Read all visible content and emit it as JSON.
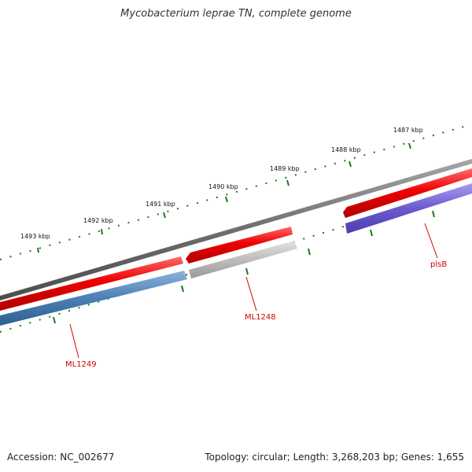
{
  "title": "Mycobacterium leprae TN, complete genome",
  "footer": {
    "accession": "Accession: NC_002677",
    "summary": "Topology: circular; Length: 3,268,203 bp; Genes: 1,655"
  },
  "scale_labels": [
    "1493 kbp",
    "1492 kbp",
    "1491 kbp",
    "1490 kbp",
    "1489 kbp",
    "1488 kbp",
    "1487 kbp"
  ],
  "genes": [
    {
      "name": "ML1249",
      "strand": "reverse",
      "color": "#4a7fb5"
    },
    {
      "name": "ML1248",
      "strand": "reverse",
      "color": "#b8b8b8"
    },
    {
      "name": "plsB",
      "strand": "reverse",
      "color": "#6a5acd"
    }
  ],
  "colors": {
    "backbone": "#7a7a7a",
    "cds_forward": "#e00000",
    "tick": "#1a7a1a",
    "label": "#d40000"
  }
}
